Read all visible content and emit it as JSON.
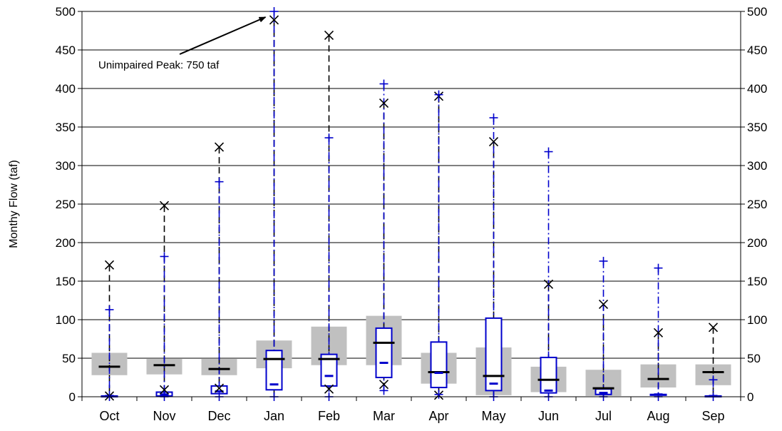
{
  "chart_data": {
    "type": "box",
    "ylabel": "Monthy Flow (taf)",
    "ylim": [
      0,
      500
    ],
    "ytick_step": 50,
    "secondary_yaxis": true,
    "grid": "horizontal",
    "legend": "none",
    "categories": [
      "Oct",
      "Nov",
      "Dec",
      "Jan",
      "Feb",
      "Mar",
      "Apr",
      "May",
      "Jun",
      "Jul",
      "Aug",
      "Sep"
    ],
    "series": [
      {
        "style": "gray-box-black-median",
        "box_low": [
          28,
          29,
          28,
          37,
          41,
          41,
          17,
          2,
          6,
          1,
          12,
          15
        ],
        "box_high": [
          57,
          49,
          49,
          73,
          91,
          105,
          57,
          64,
          39,
          35,
          42,
          42
        ],
        "median": [
          39,
          41,
          36,
          49,
          49,
          70,
          32,
          27,
          22,
          11,
          23,
          32
        ],
        "max": [
          171,
          248,
          324,
          489,
          469,
          381,
          390,
          331,
          146,
          120,
          83,
          90
        ],
        "min": [
          1,
          9,
          11,
          0,
          10,
          16,
          2,
          0,
          0,
          0,
          0,
          0
        ],
        "max_marker": "x-black",
        "whisker_style": "dashed-black"
      },
      {
        "style": "blue-outline-box-blue-median",
        "box_low": [
          0,
          1,
          4,
          9,
          14,
          25,
          12,
          8,
          5,
          3,
          2,
          0
        ],
        "box_high": [
          1,
          6,
          14,
          60,
          55,
          89,
          71,
          102,
          51,
          10,
          3,
          1
        ],
        "median": [
          1,
          3,
          7,
          16,
          27,
          44,
          31,
          17,
          8,
          5,
          3,
          1
        ],
        "max": [
          113,
          182,
          279,
          500,
          336,
          406,
          392,
          362,
          318,
          176,
          167,
          22
        ],
        "min": [
          0,
          0,
          0,
          0,
          0,
          8,
          3,
          0,
          0,
          0,
          0,
          0
        ],
        "max_marker": "plus-blue",
        "whisker_style": "dashdot-blue"
      }
    ],
    "annotations": [
      {
        "text": "Unimpaired Peak: 750 taf",
        "category": "Jan",
        "value": 500,
        "arrow": true
      }
    ],
    "colors": {
      "box_fill": "#c0c0c0",
      "median_black": "#000000",
      "blue": "#0000cc",
      "grid": "#000000"
    }
  }
}
